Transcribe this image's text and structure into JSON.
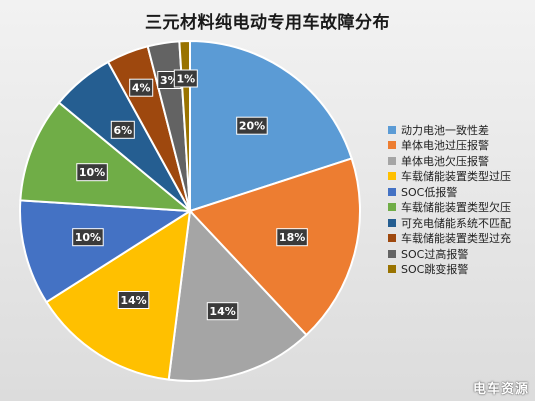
{
  "watermark": "电车资源",
  "chart_data": {
    "type": "pie",
    "title": "三元材料纯电动专用车故障分布",
    "legend_position": "right",
    "categories": [
      "动力电池一致性差",
      "单体电池过压报警",
      "单体电池欠压报警",
      "车载储能装置类型过压",
      "SOC低报警",
      "车载储能装置类型欠压",
      "可充电储能系统不匹配",
      "车载储能装置类型过充",
      "SOC过高报警",
      "SOC跳变报警"
    ],
    "values": [
      20,
      18,
      14,
      14,
      10,
      10,
      6,
      4,
      3,
      1
    ],
    "labels": [
      "20%",
      "18%",
      "14%",
      "14%",
      "10%",
      "10%",
      "6%",
      "4%",
      "3%",
      "1%"
    ],
    "colors": [
      "#5b9bd5",
      "#ed7d31",
      "#a5a5a5",
      "#ffc000",
      "#4472c4",
      "#70ad47",
      "#255e91",
      "#9e480e",
      "#636363",
      "#997300"
    ]
  }
}
